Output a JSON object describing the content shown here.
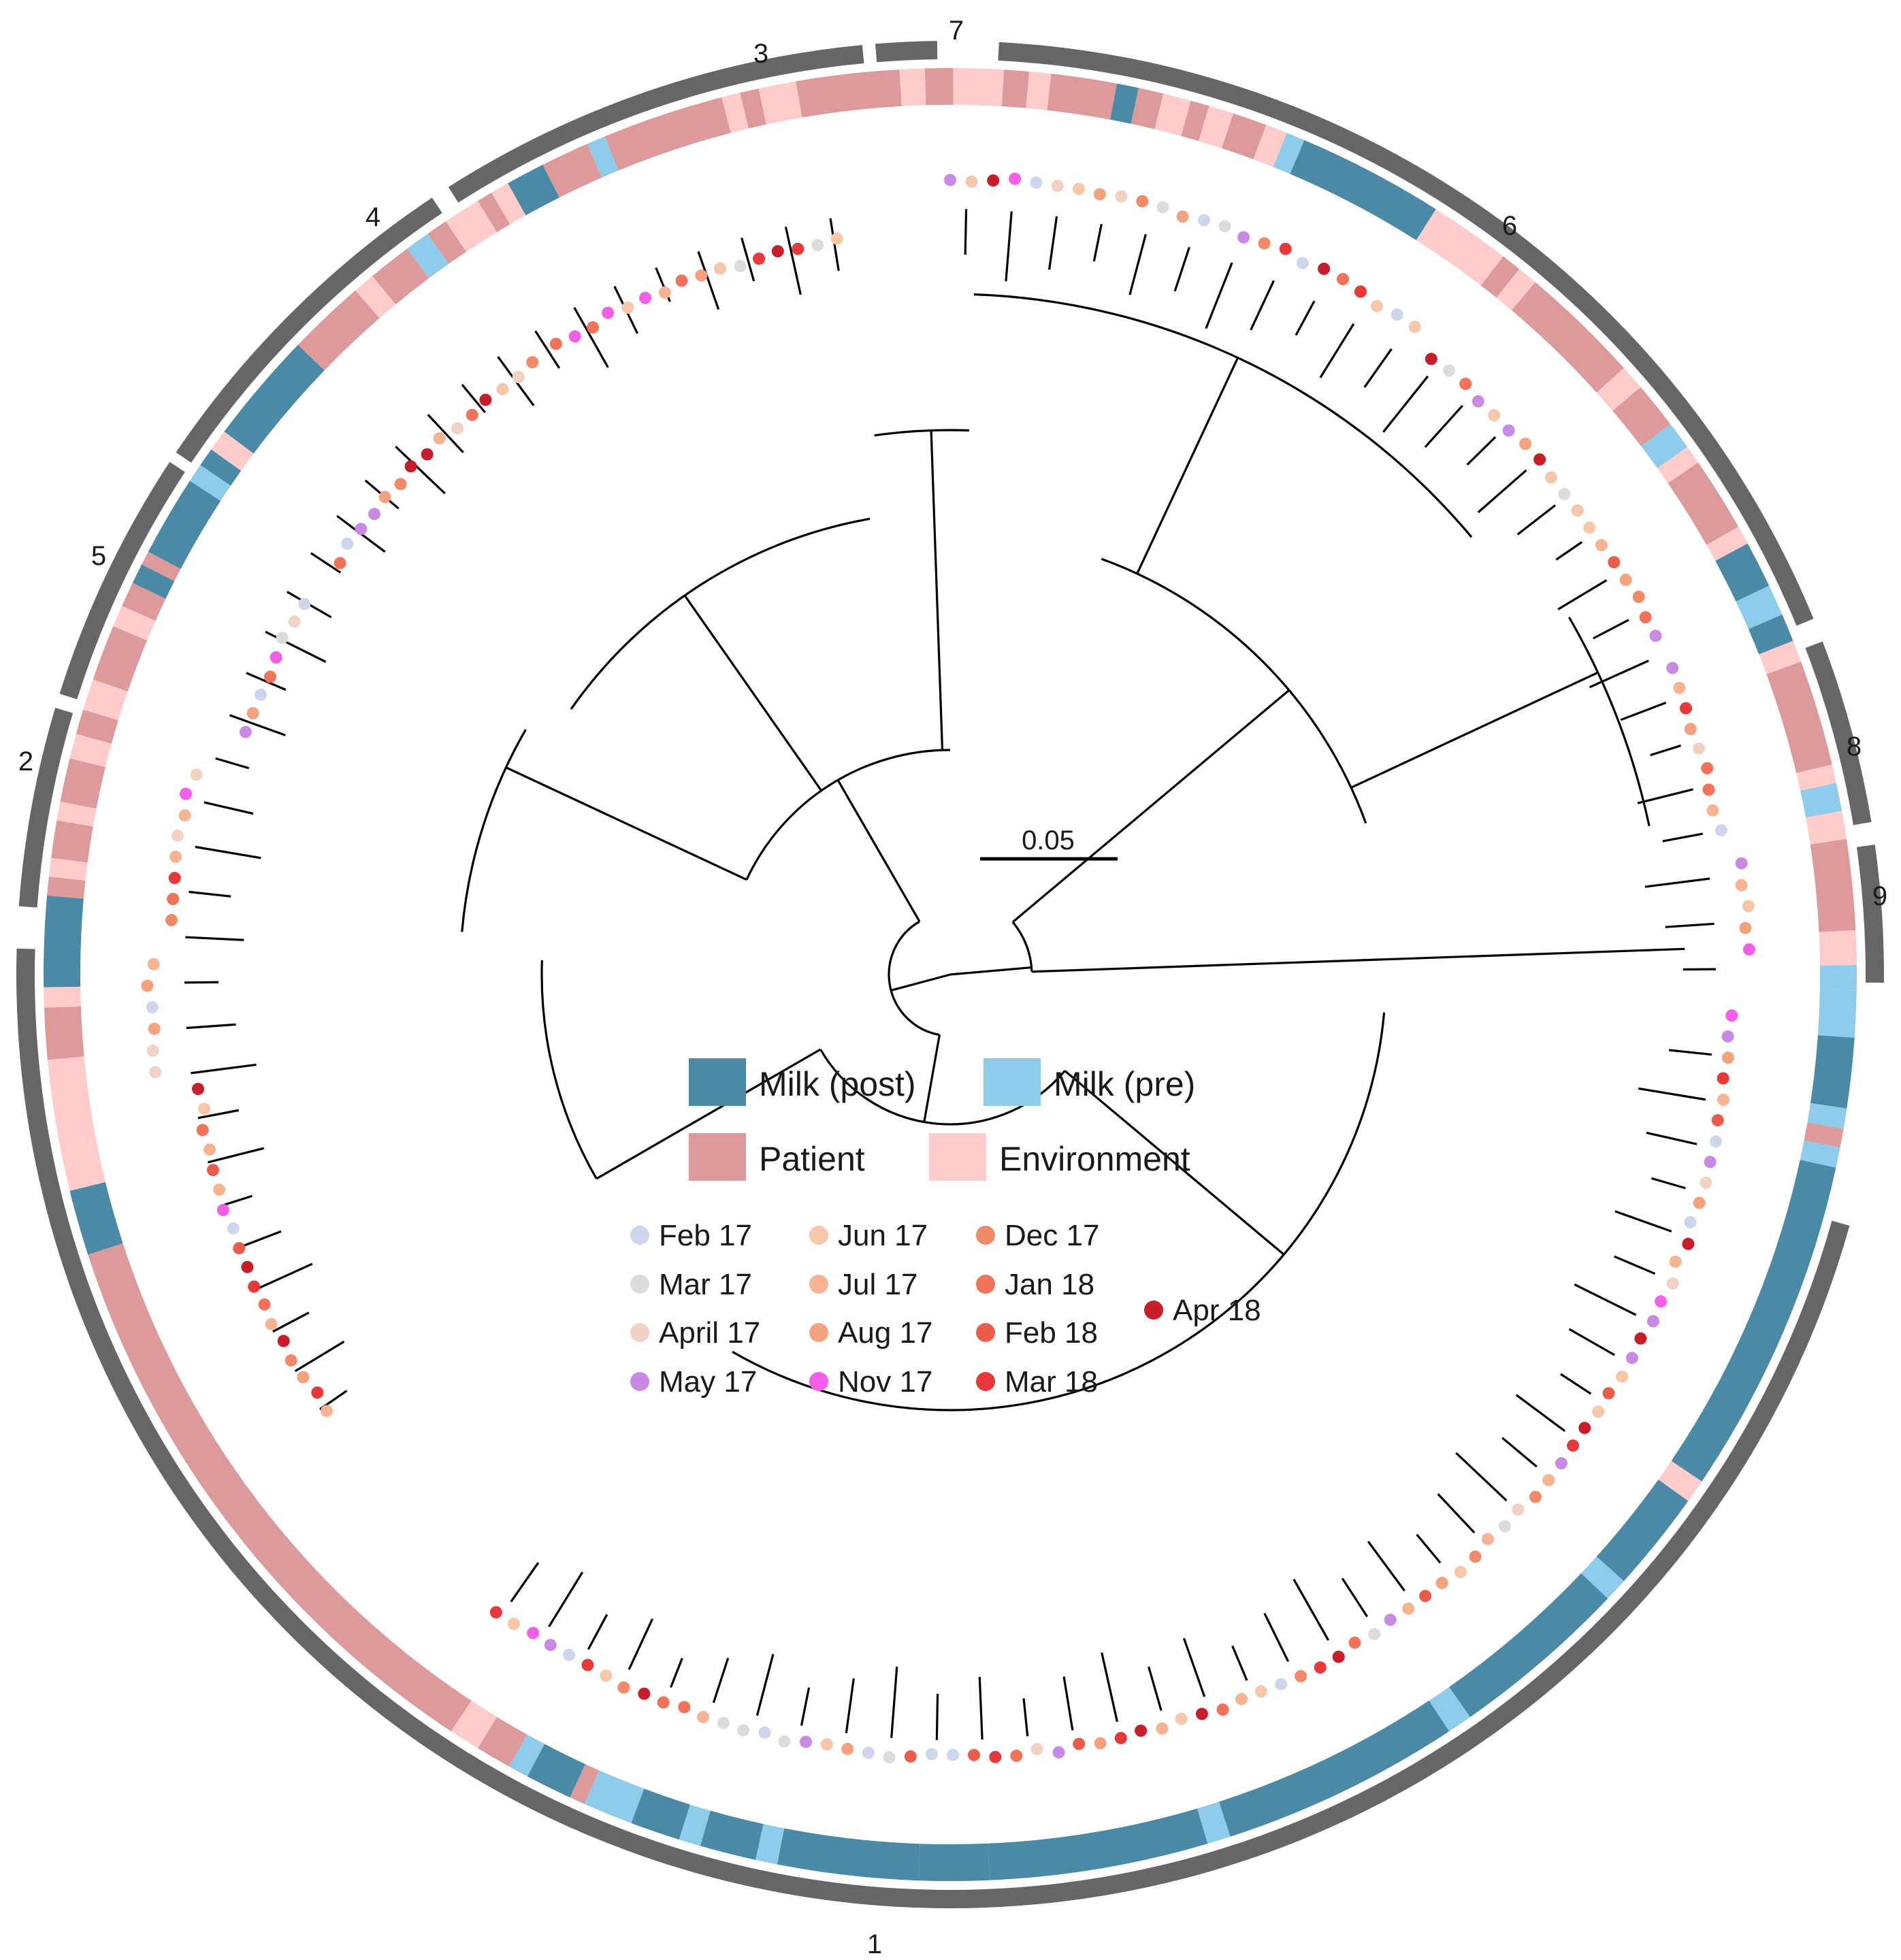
{
  "colors": {
    "milk_post": "#4a8aa6",
    "milk_pre": "#8fcbea",
    "patient": "#dc9a9a",
    "environment": "#ffcccc",
    "cluster_ring": "#666666"
  },
  "clusters": [
    {
      "id": "1",
      "label": "1"
    },
    {
      "id": "2",
      "label": "2"
    },
    {
      "id": "3",
      "label": "3"
    },
    {
      "id": "4",
      "label": "4"
    },
    {
      "id": "5",
      "label": "5"
    },
    {
      "id": "6",
      "label": "6"
    },
    {
      "id": "7",
      "label": "7"
    },
    {
      "id": "8",
      "label": "8"
    },
    {
      "id": "9",
      "label": "9"
    }
  ],
  "legend": {
    "sources": [
      {
        "key": "milk_post",
        "label": "Milk (post)",
        "color": "#4a8aa6"
      },
      {
        "key": "milk_pre",
        "label": "Milk (pre)",
        "color": "#8fcbea"
      },
      {
        "key": "patient",
        "label": "Patient",
        "color": "#dc9a9a"
      },
      {
        "key": "environment",
        "label": "Environment",
        "color": "#ffcccc"
      }
    ],
    "months": [
      {
        "label": "Feb 17",
        "color": "#cdd6ec"
      },
      {
        "label": "Mar 17",
        "color": "#dcdcdc"
      },
      {
        "label": "April 17",
        "color": "#f2d2c4"
      },
      {
        "label": "May 17",
        "color": "#c98ae6"
      },
      {
        "label": "Jun 17",
        "color": "#f8c7a9"
      },
      {
        "label": "Jul 17",
        "color": "#f6b493"
      },
      {
        "label": "Aug 17",
        "color": "#f5a27e"
      },
      {
        "label": "Nov 17",
        "color": "#f55ee6"
      },
      {
        "label": "Dec 17",
        "color": "#f28a6a"
      },
      {
        "label": "Jan 18",
        "color": "#f0735a"
      },
      {
        "label": "Feb 18",
        "color": "#ec5c4a"
      },
      {
        "label": "Mar 18",
        "color": "#e7383a"
      },
      {
        "label": "Apr 18",
        "color": "#c81e2c"
      }
    ]
  },
  "scale_bar": {
    "label": "0.05",
    "value": 0.05
  }
}
